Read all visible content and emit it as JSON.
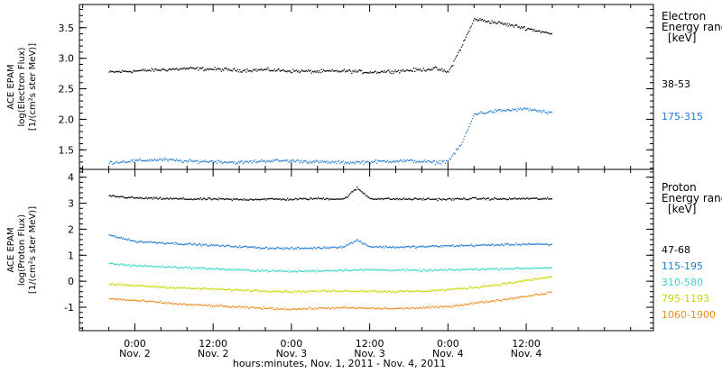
{
  "chart_data": [
    {
      "type": "scatter",
      "title": "",
      "ylabel_lines": [
        "ACE EPAM",
        "log(Electron Flux)",
        "[1/(cm²s ster MeV)]"
      ],
      "yticks": [
        "1.5",
        "2.0",
        "2.5",
        "3.0",
        "3.5"
      ],
      "ylim": [
        1.18,
        3.88
      ],
      "legend_title_lines": [
        "Electron",
        "Energy ranges",
        "[keV]"
      ],
      "x": "hours since Nov. 1, 2011 00:00",
      "series": [
        {
          "name": "38-53",
          "color": "#000000",
          "points": [
            [
              20,
              2.78
            ],
            [
              24,
              2.8
            ],
            [
              28,
              2.82
            ],
            [
              32,
              2.84
            ],
            [
              36,
              2.83
            ],
            [
              40,
              2.81
            ],
            [
              44,
              2.82
            ],
            [
              48,
              2.8
            ],
            [
              52,
              2.79
            ],
            [
              56,
              2.8
            ],
            [
              60,
              2.78
            ],
            [
              64,
              2.8
            ],
            [
              68,
              2.82
            ],
            [
              70,
              2.84
            ],
            [
              72,
              2.78
            ],
            [
              74,
              3.2
            ],
            [
              76,
              3.65
            ],
            [
              80,
              3.58
            ],
            [
              84,
              3.5
            ],
            [
              88,
              3.4
            ]
          ]
        },
        {
          "name": "175-315",
          "color": "#1e7bd6",
          "points": [
            [
              20,
              1.3
            ],
            [
              24,
              1.33
            ],
            [
              28,
              1.35
            ],
            [
              32,
              1.32
            ],
            [
              36,
              1.32
            ],
            [
              40,
              1.3
            ],
            [
              44,
              1.33
            ],
            [
              48,
              1.33
            ],
            [
              52,
              1.31
            ],
            [
              56,
              1.3
            ],
            [
              60,
              1.31
            ],
            [
              64,
              1.33
            ],
            [
              68,
              1.32
            ],
            [
              70,
              1.3
            ],
            [
              72,
              1.33
            ],
            [
              74,
              1.6
            ],
            [
              76,
              2.1
            ],
            [
              80,
              2.15
            ],
            [
              84,
              2.18
            ],
            [
              88,
              2.1
            ]
          ]
        }
      ]
    },
    {
      "type": "scatter",
      "title": "",
      "ylabel_lines": [
        "ACE EPAM",
        "log(Proton Flux)",
        "[1/(cm²s ster MeV)]"
      ],
      "yticks": [
        "-1",
        "0",
        "1",
        "2",
        "3",
        "4"
      ],
      "ylim": [
        -1.9,
        4.3
      ],
      "legend_title_lines": [
        "Proton",
        "Energy ranges",
        "[keV]"
      ],
      "x": "hours since Nov. 1, 2011 00:00",
      "series": [
        {
          "name": "47-68",
          "color": "#000000",
          "points": [
            [
              20,
              3.3
            ],
            [
              24,
              3.22
            ],
            [
              28,
              3.2
            ],
            [
              32,
              3.18
            ],
            [
              36,
              3.18
            ],
            [
              40,
              3.16
            ],
            [
              44,
              3.18
            ],
            [
              48,
              3.17
            ],
            [
              52,
              3.2
            ],
            [
              56,
              3.18
            ],
            [
              58,
              3.6
            ],
            [
              60,
              3.2
            ],
            [
              64,
              3.18
            ],
            [
              68,
              3.18
            ],
            [
              72,
              3.17
            ],
            [
              76,
              3.2
            ],
            [
              80,
              3.18
            ],
            [
              84,
              3.2
            ],
            [
              88,
              3.18
            ]
          ]
        },
        {
          "name": "115-195",
          "color": "#1e7bd6",
          "points": [
            [
              20,
              1.8
            ],
            [
              24,
              1.55
            ],
            [
              28,
              1.5
            ],
            [
              32,
              1.45
            ],
            [
              36,
              1.4
            ],
            [
              40,
              1.35
            ],
            [
              44,
              1.3
            ],
            [
              48,
              1.28
            ],
            [
              52,
              1.3
            ],
            [
              56,
              1.35
            ],
            [
              58,
              1.6
            ],
            [
              60,
              1.35
            ],
            [
              64,
              1.33
            ],
            [
              68,
              1.35
            ],
            [
              72,
              1.38
            ],
            [
              76,
              1.4
            ],
            [
              80,
              1.42
            ],
            [
              84,
              1.45
            ],
            [
              88,
              1.42
            ]
          ]
        },
        {
          "name": "310-580",
          "color": "#35d6c8",
          "points": [
            [
              20,
              0.7
            ],
            [
              24,
              0.62
            ],
            [
              28,
              0.58
            ],
            [
              32,
              0.54
            ],
            [
              36,
              0.5
            ],
            [
              40,
              0.45
            ],
            [
              44,
              0.42
            ],
            [
              48,
              0.4
            ],
            [
              52,
              0.42
            ],
            [
              56,
              0.45
            ],
            [
              60,
              0.46
            ],
            [
              64,
              0.45
            ],
            [
              68,
              0.43
            ],
            [
              72,
              0.45
            ],
            [
              76,
              0.48
            ],
            [
              80,
              0.5
            ],
            [
              84,
              0.52
            ],
            [
              88,
              0.55
            ]
          ]
        },
        {
          "name": "795-1193",
          "color": "#c8d800",
          "points": [
            [
              20,
              -0.1
            ],
            [
              24,
              -0.15
            ],
            [
              28,
              -0.2
            ],
            [
              32,
              -0.25
            ],
            [
              36,
              -0.28
            ],
            [
              40,
              -0.32
            ],
            [
              44,
              -0.35
            ],
            [
              48,
              -0.38
            ],
            [
              52,
              -0.36
            ],
            [
              56,
              -0.35
            ],
            [
              60,
              -0.36
            ],
            [
              64,
              -0.38
            ],
            [
              68,
              -0.36
            ],
            [
              72,
              -0.3
            ],
            [
              76,
              -0.22
            ],
            [
              80,
              -0.1
            ],
            [
              84,
              0.05
            ],
            [
              88,
              0.2
            ]
          ]
        },
        {
          "name": "1060-1900",
          "color": "#f08c1e",
          "points": [
            [
              20,
              -0.65
            ],
            [
              24,
              -0.72
            ],
            [
              28,
              -0.8
            ],
            [
              32,
              -0.88
            ],
            [
              36,
              -0.92
            ],
            [
              40,
              -0.98
            ],
            [
              44,
              -1.02
            ],
            [
              48,
              -1.05
            ],
            [
              52,
              -1.02
            ],
            [
              56,
              -1.0
            ],
            [
              60,
              -1.02
            ],
            [
              64,
              -1.03
            ],
            [
              68,
              -1.0
            ],
            [
              72,
              -0.95
            ],
            [
              76,
              -0.82
            ],
            [
              80,
              -0.7
            ],
            [
              84,
              -0.55
            ],
            [
              88,
              -0.4
            ]
          ]
        }
      ]
    }
  ],
  "x_axis": {
    "xlim": [
      15.5,
      103.5
    ],
    "major_ticks": [
      {
        "hour": 24,
        "time": "0:00",
        "date": "Nov. 2"
      },
      {
        "hour": 36,
        "time": "12:00",
        "date": "Nov. 2"
      },
      {
        "hour": 48,
        "time": "0:00",
        "date": "Nov. 3"
      },
      {
        "hour": 60,
        "time": "12:00",
        "date": "Nov. 3"
      },
      {
        "hour": 72,
        "time": "0:00",
        "date": "Nov. 4"
      },
      {
        "hour": 84,
        "time": "12:00",
        "date": "Nov. 4"
      }
    ],
    "label": "hours:minutes, Nov.  1, 2011 - Nov.  4, 2011"
  }
}
